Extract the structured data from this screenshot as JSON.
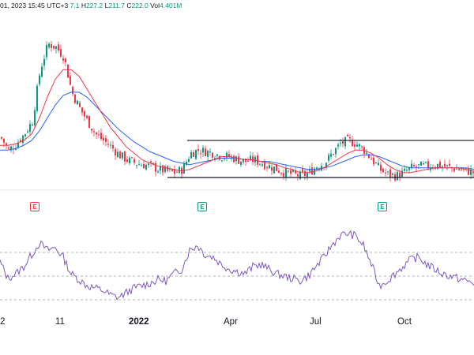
{
  "header": {
    "date_text": "01, 2023 15:45 UTC+3",
    "open_fragment": "7.1",
    "high_label": "H",
    "high_value": "227.2",
    "low_label": "L",
    "low_value": "211.7",
    "close_label": "C",
    "close_value": "222.0",
    "vol_label": "Vol",
    "vol_value": "4.401M"
  },
  "events": [
    {
      "label": "E",
      "color": "red"
    },
    {
      "label": "E",
      "color": "green"
    },
    {
      "label": "E",
      "color": "green"
    }
  ],
  "x_axis_labels": [
    "2",
    "11",
    "2022",
    "Apr",
    "Jul",
    "Oct"
  ],
  "colors": {
    "up": "#089981",
    "down": "#f23645",
    "ma_fast": "#f23645",
    "ma_slow": "#2962ff",
    "oscillator": "#7e57c2",
    "channel": "#131722"
  },
  "chart_data": [
    {
      "type": "candlestick",
      "panel": "price",
      "x": [
        0,
        10,
        20,
        30,
        40,
        50,
        60,
        70,
        80,
        90,
        100,
        110,
        120,
        130,
        140,
        150,
        160,
        170,
        180,
        190,
        200,
        210,
        220,
        230,
        240,
        250,
        260,
        270,
        280,
        290,
        300,
        310,
        320,
        330,
        340,
        350,
        360,
        370,
        380,
        390,
        400,
        410,
        420,
        430,
        440,
        450,
        460,
        470,
        480,
        490,
        500,
        510,
        520,
        530,
        540,
        550,
        560,
        570,
        580,
        590,
        600
      ],
      "close": [
        220,
        212,
        216,
        222,
        230,
        262,
        278,
        276,
        270,
        248,
        238,
        230,
        222,
        218,
        214,
        209,
        206,
        204,
        203,
        202,
        200,
        199,
        198,
        200,
        210,
        212,
        211,
        210,
        208,
        208,
        206,
        205,
        206,
        204,
        202,
        200,
        198,
        197,
        196,
        198,
        202,
        204,
        210,
        216,
        218,
        216,
        212,
        206,
        200,
        197,
        196,
        198,
        201,
        202,
        202,
        203,
        202,
        201,
        200,
        199,
        198
      ],
      "sma_fast": [
        215,
        215,
        216,
        218,
        222,
        232,
        245,
        256,
        262,
        262,
        258,
        250,
        242,
        234,
        226,
        220,
        214,
        210,
        206,
        204,
        202,
        201,
        200,
        199,
        200,
        202,
        204,
        206,
        208,
        208,
        207,
        206,
        206,
        205,
        204,
        203,
        201,
        200,
        198,
        198,
        199,
        201,
        204,
        207,
        210,
        212,
        212,
        210,
        207,
        203,
        200,
        198,
        198,
        199,
        200,
        201,
        201,
        201,
        201,
        200,
        199
      ],
      "sma_slow": [
        212,
        212,
        213,
        215,
        218,
        224,
        232,
        240,
        246,
        248,
        248,
        245,
        240,
        235,
        230,
        225,
        221,
        217,
        214,
        211,
        209,
        207,
        205,
        204,
        203,
        204,
        205,
        206,
        207,
        207,
        207,
        206,
        206,
        205,
        205,
        204,
        203,
        202,
        201,
        200,
        200,
        201,
        202,
        204,
        206,
        208,
        209,
        209,
        208,
        206,
        204,
        202,
        201,
        201,
        201,
        201,
        201,
        201,
        201,
        201,
        200
      ],
      "channel": {
        "upper": 218,
        "lower": 195
      }
    },
    {
      "type": "line",
      "panel": "oscillator",
      "x": [
        0,
        10,
        20,
        30,
        40,
        50,
        60,
        70,
        80,
        90,
        100,
        110,
        120,
        130,
        140,
        150,
        160,
        170,
        180,
        190,
        200,
        210,
        220,
        230,
        240,
        250,
        260,
        270,
        280,
        290,
        300,
        310,
        320,
        330,
        340,
        350,
        360,
        370,
        380,
        390,
        400,
        410,
        420,
        430,
        440,
        450,
        460,
        470,
        480,
        490,
        500,
        510,
        520,
        530,
        540,
        550,
        560,
        570,
        580,
        590,
        600
      ],
      "values": [
        62,
        48,
        52,
        58,
        68,
        78,
        72,
        74,
        66,
        52,
        47,
        42,
        40,
        38,
        34,
        32,
        36,
        40,
        42,
        44,
        47,
        46,
        52,
        56,
        72,
        76,
        68,
        66,
        60,
        56,
        54,
        52,
        58,
        60,
        56,
        52,
        50,
        48,
        46,
        50,
        58,
        66,
        76,
        84,
        86,
        84,
        76,
        60,
        42,
        46,
        52,
        58,
        64,
        66,
        60,
        56,
        52,
        50,
        48,
        46,
        44
      ],
      "ylim": [
        30,
        90
      ],
      "levels": [
        70,
        50,
        30
      ]
    }
  ]
}
